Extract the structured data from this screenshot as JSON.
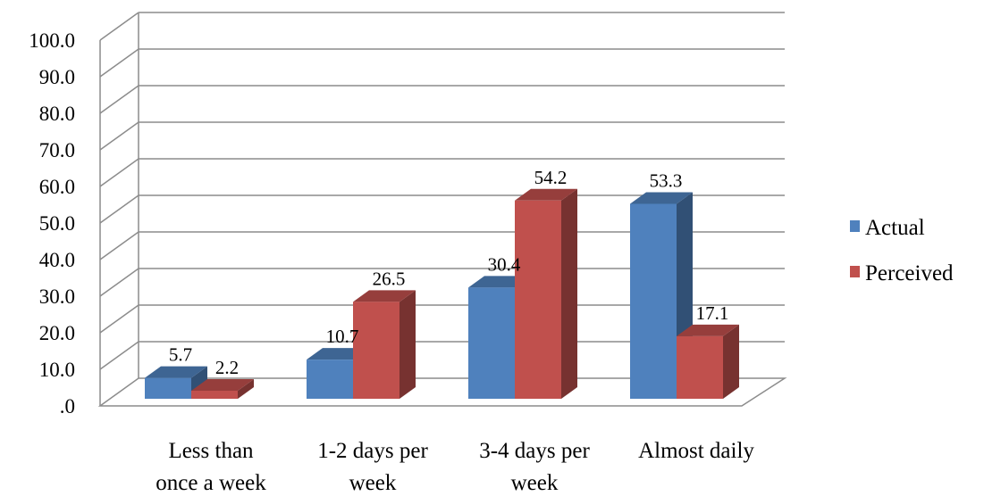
{
  "chart_data": {
    "type": "bar",
    "style": "3d-clustered-column",
    "categories": [
      [
        "Less than",
        "once a week"
      ],
      [
        "1-2 days per",
        "week"
      ],
      [
        "3-4 days per",
        "week"
      ],
      [
        "Almost daily"
      ]
    ],
    "series": [
      {
        "name": "Actual",
        "color": "#4F81BD",
        "values": [
          5.7,
          10.7,
          30.4,
          53.3
        ],
        "labels": [
          "5.7",
          "10.7",
          "30.4",
          "53.3"
        ]
      },
      {
        "name": "Perceived",
        "color": "#C0504D",
        "values": [
          2.2,
          26.5,
          54.2,
          17.1
        ],
        "labels": [
          "2.2",
          "26.5",
          "54.2",
          "17.1"
        ]
      }
    ],
    "ylim": [
      0,
      100
    ],
    "yticks": [
      ".0",
      "10.0",
      "20.0",
      "30.0",
      "40.0",
      "50.0",
      "60.0",
      "70.0",
      "80.0",
      "90.0",
      "100.0"
    ],
    "title": "",
    "xlabel": "",
    "ylabel": "",
    "grid": true,
    "legend": "right"
  }
}
